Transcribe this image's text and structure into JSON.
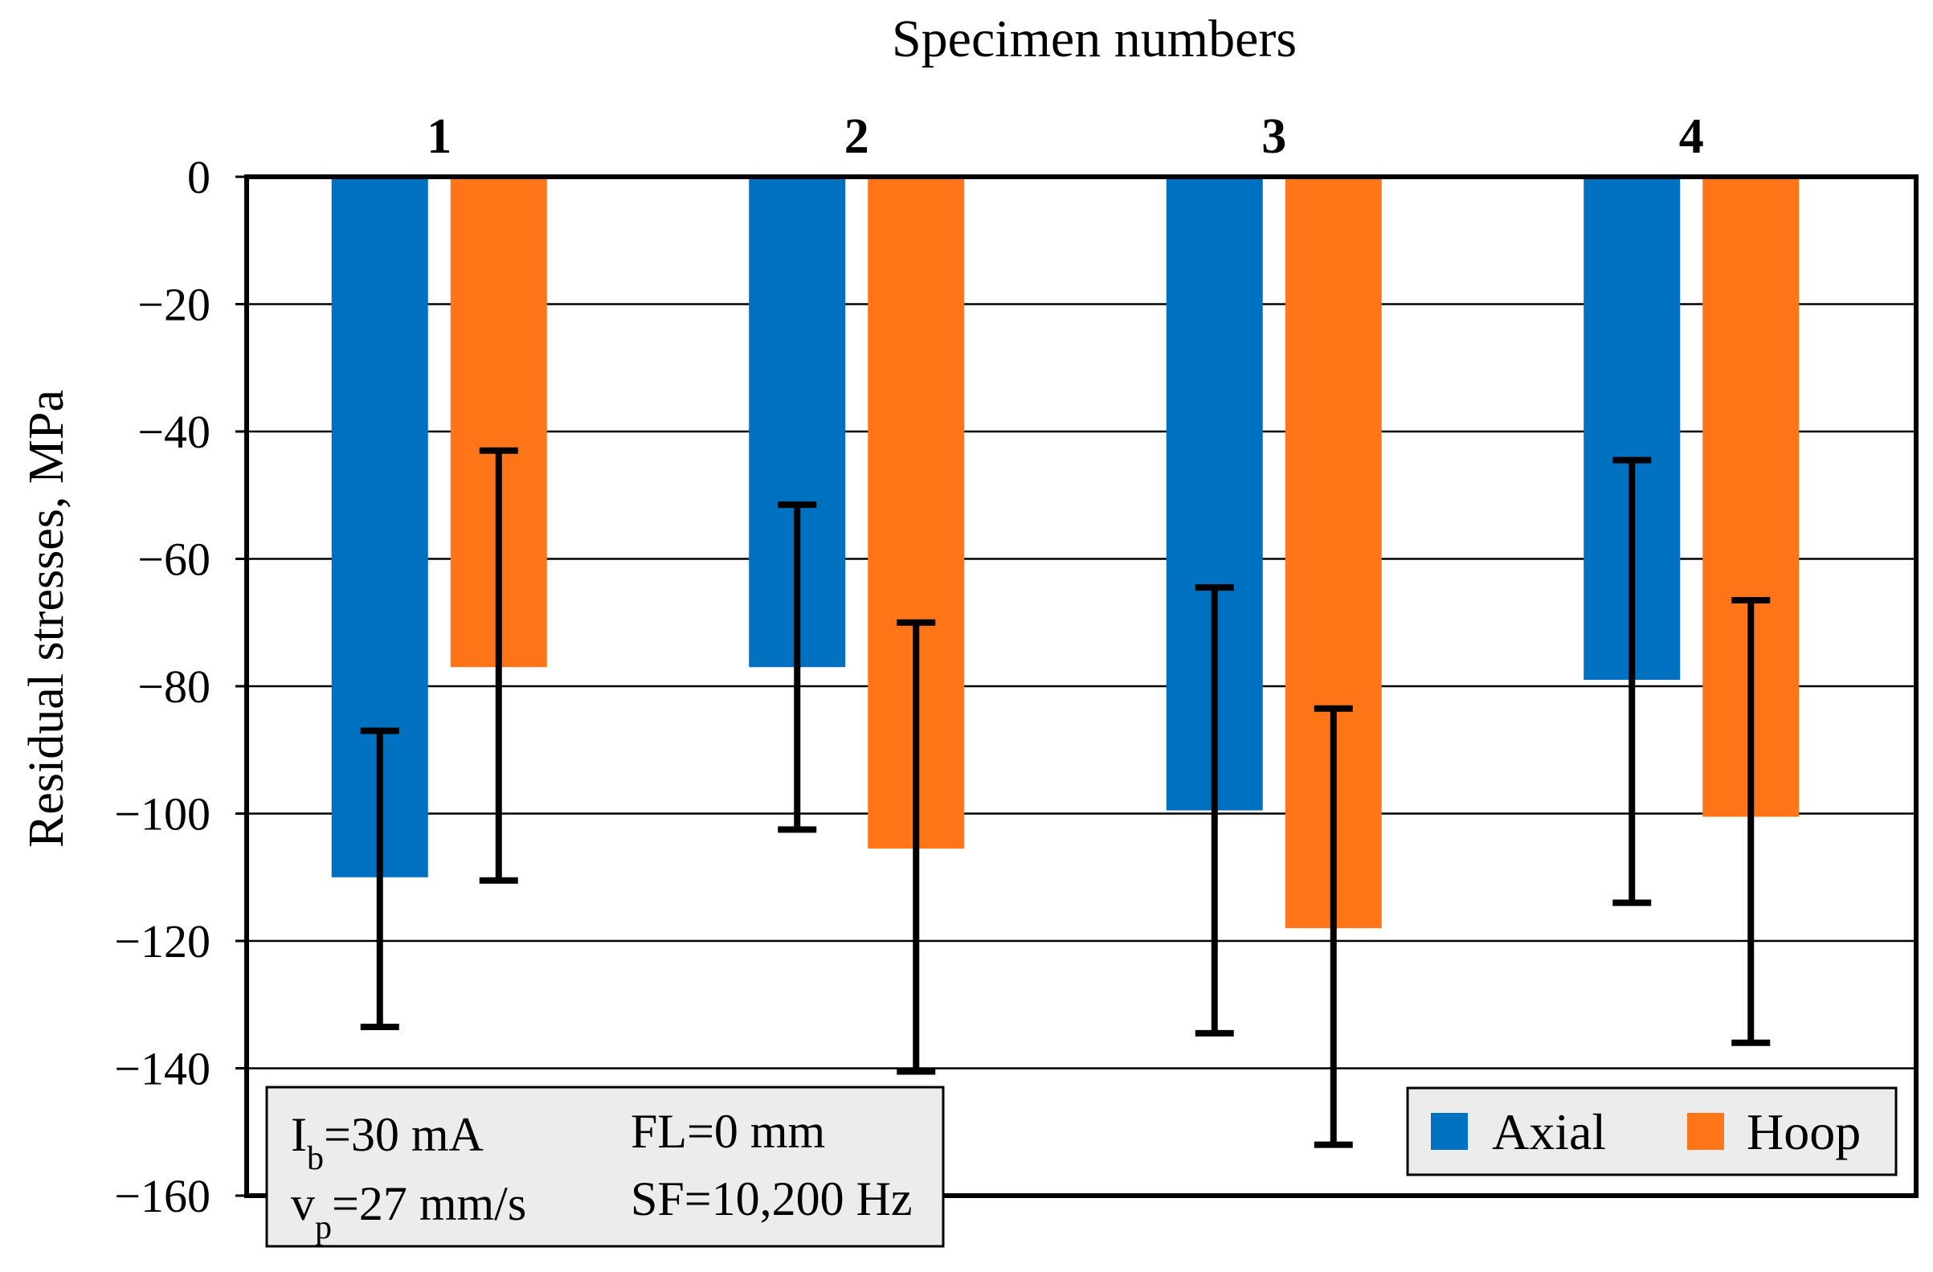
{
  "chart_data": {
    "type": "bar",
    "title": "Specimen numbers",
    "xlabel": "Specimen numbers",
    "ylabel": "Residual stresses, MPa",
    "categories": [
      "1",
      "2",
      "3",
      "4"
    ],
    "ylim": [
      -160,
      0
    ],
    "yticks": [
      0,
      -20,
      -40,
      -60,
      -80,
      -100,
      -120,
      -140,
      -160
    ],
    "ytick_labels": [
      "0",
      "−20",
      "−40",
      "−60",
      "−80",
      "−100",
      "−120",
      "−140",
      "−160"
    ],
    "grid": true,
    "legend_position": "bottom-right",
    "series": [
      {
        "name": "Axial",
        "color": "#0070c0",
        "values": [
          -110,
          -77,
          -99.5,
          -79
        ],
        "error_low": [
          -133.5,
          -102.5,
          -134.5,
          -114
        ],
        "error_high": [
          -87,
          -51.5,
          -64.5,
          -44.5
        ]
      },
      {
        "name": "Hoop",
        "color": "#ff7518",
        "values": [
          -77,
          -105.5,
          -118,
          -100.5
        ],
        "error_low": [
          -110.5,
          -140.5,
          -152,
          -136
        ],
        "error_high": [
          -43,
          -70,
          -83.5,
          -66.5
        ]
      }
    ],
    "annotation": {
      "rows": [
        [
          {
            "main": "I",
            "sub": "b",
            "rest": "=30 mA"
          },
          {
            "main": "FL=0 mm",
            "sub": "",
            "rest": ""
          }
        ],
        [
          {
            "main": "v",
            "sub": "p",
            "rest": "=27 mm/s"
          },
          {
            "main": "SF=10,200 Hz",
            "sub": "",
            "rest": ""
          }
        ]
      ]
    }
  }
}
